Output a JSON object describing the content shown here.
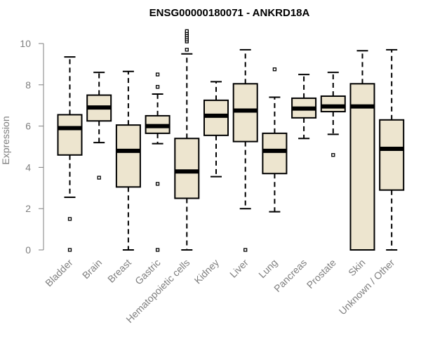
{
  "chart_data": {
    "type": "boxplot",
    "title": "ENSG00000180071 - ANKRD18A",
    "ylabel": "Expression",
    "xlabel": "",
    "ylim": [
      0,
      10
    ],
    "yticks": [
      0,
      2,
      4,
      6,
      8,
      10
    ],
    "box_fill": "#ede5cf",
    "median_color": "#000000",
    "categories": [
      "Bladder",
      "Brain",
      "Breast",
      "Gastric",
      "Hematopoietic cells",
      "Kidney",
      "Liver",
      "Lung",
      "Pancreas",
      "Prostate",
      "Skin",
      "Unknown / Other"
    ],
    "boxes": [
      {
        "category": "Bladder",
        "whisker_low": 2.55,
        "q1": 4.6,
        "median": 5.9,
        "q3": 6.55,
        "whisker_high": 9.35,
        "outliers": [
          1.5,
          0.0
        ]
      },
      {
        "category": "Brain",
        "whisker_low": 5.2,
        "q1": 6.25,
        "median": 6.9,
        "q3": 7.5,
        "whisker_high": 8.6,
        "outliers": [
          3.5
        ]
      },
      {
        "category": "Breast",
        "whisker_low": 0.0,
        "q1": 3.05,
        "median": 4.8,
        "q3": 6.05,
        "whisker_high": 8.65,
        "outliers": []
      },
      {
        "category": "Gastric",
        "whisker_low": 5.15,
        "q1": 5.65,
        "median": 6.0,
        "q3": 6.5,
        "whisker_high": 7.55,
        "outliers": [
          8.5,
          7.9,
          3.2,
          0.0
        ]
      },
      {
        "category": "Hematopoietic cells",
        "whisker_low": 0.0,
        "q1": 2.5,
        "median": 3.8,
        "q3": 5.4,
        "whisker_high": 9.5,
        "outliers": [
          9.7,
          10.1,
          10.2,
          10.3,
          10.4,
          10.5,
          10.6
        ]
      },
      {
        "category": "Kidney",
        "whisker_low": 3.55,
        "q1": 5.55,
        "median": 6.5,
        "q3": 7.25,
        "whisker_high": 8.15,
        "outliers": []
      },
      {
        "category": "Liver",
        "whisker_low": 2.0,
        "q1": 5.25,
        "median": 6.75,
        "q3": 8.05,
        "whisker_high": 9.7,
        "outliers": [
          0.0
        ]
      },
      {
        "category": "Lung",
        "whisker_low": 1.85,
        "q1": 3.7,
        "median": 4.8,
        "q3": 5.65,
        "whisker_high": 7.4,
        "outliers": [
          8.75
        ]
      },
      {
        "category": "Pancreas",
        "whisker_low": 5.4,
        "q1": 6.4,
        "median": 6.85,
        "q3": 7.35,
        "whisker_high": 8.5,
        "outliers": []
      },
      {
        "category": "Prostate",
        "whisker_low": 5.6,
        "q1": 6.7,
        "median": 6.95,
        "q3": 7.45,
        "whisker_high": 8.6,
        "outliers": [
          4.6
        ]
      },
      {
        "category": "Skin",
        "whisker_low": 0.0,
        "q1": 0.0,
        "median": 6.95,
        "q3": 8.05,
        "whisker_high": 9.65,
        "outliers": []
      },
      {
        "category": "Unknown / Other",
        "whisker_low": 0.0,
        "q1": 2.9,
        "median": 4.9,
        "q3": 6.3,
        "whisker_high": 9.7,
        "outliers": []
      }
    ]
  }
}
